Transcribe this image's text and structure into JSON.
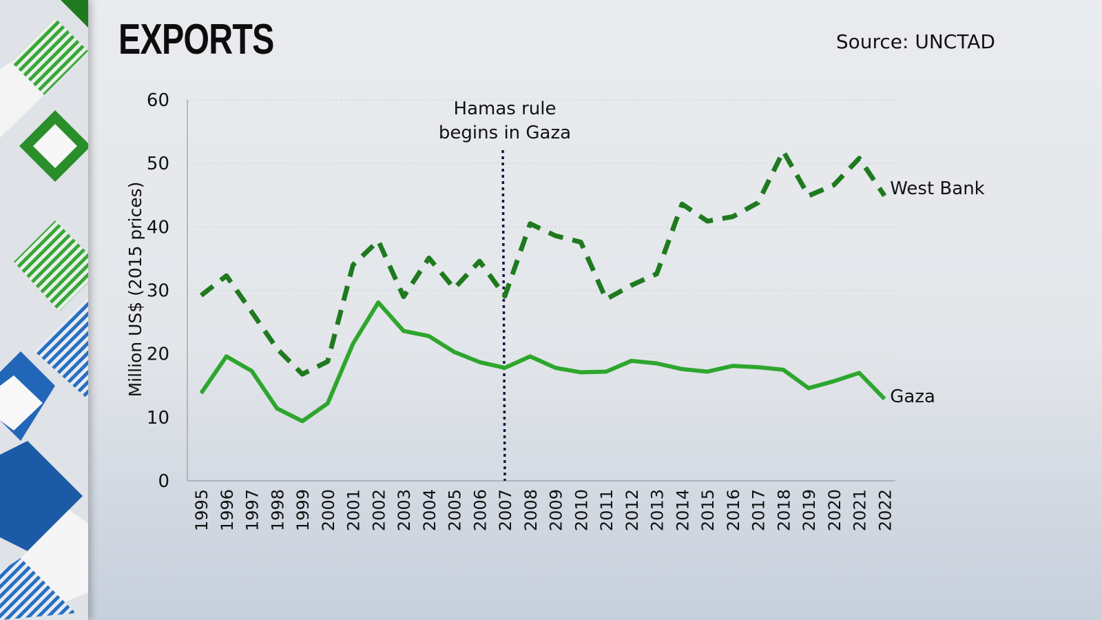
{
  "header": {
    "title": "EXPORTS",
    "source": "Source: UNCTAD"
  },
  "colors": {
    "west_bank": "#1f7a1f",
    "gaza": "#2ea62e",
    "marker": "#14143c",
    "axis": "#888888"
  },
  "annotation": {
    "line1": "Hamas rule",
    "line2": "begins in Gaza",
    "year": 2007
  },
  "chart_data": {
    "type": "line",
    "title": "EXPORTS",
    "xlabel": "",
    "ylabel": "Million US$ (2015 prices)",
    "ylim": [
      0,
      60
    ],
    "yticks": [
      0,
      10,
      20,
      30,
      40,
      50,
      60
    ],
    "grid": true,
    "legend": "inline labels at line ends",
    "x": [
      1995,
      1996,
      1997,
      1998,
      1999,
      2000,
      2001,
      2002,
      2003,
      2004,
      2005,
      2006,
      2007,
      2008,
      2009,
      2010,
      2011,
      2012,
      2013,
      2014,
      2015,
      2016,
      2017,
      2018,
      2019,
      2020,
      2021,
      2022
    ],
    "series": [
      {
        "name": "West Bank",
        "style": "dashed",
        "values": [
          29.2,
          32.3,
          26.6,
          20.8,
          16.8,
          18.8,
          34.0,
          37.8,
          29.0,
          35.1,
          30.3,
          34.6,
          29.1,
          40.5,
          38.6,
          37.6,
          28.6,
          30.8,
          32.6,
          43.6,
          40.9,
          41.6,
          43.8,
          51.9,
          44.9,
          46.6,
          50.8,
          44.9
        ]
      },
      {
        "name": "Gaza",
        "style": "solid",
        "values": [
          13.8,
          19.6,
          17.3,
          11.4,
          9.4,
          12.2,
          21.6,
          28.1,
          23.6,
          22.8,
          20.3,
          18.7,
          17.8,
          19.6,
          17.8,
          17.1,
          17.2,
          18.9,
          18.5,
          17.6,
          17.2,
          18.1,
          17.9,
          17.5,
          14.6,
          15.7,
          17.0,
          12.9
        ]
      }
    ],
    "annotations": [
      {
        "x": 2007,
        "text": "Hamas rule begins in Gaza",
        "style": "dotted vertical line"
      }
    ],
    "source": "Source: UNCTAD"
  }
}
